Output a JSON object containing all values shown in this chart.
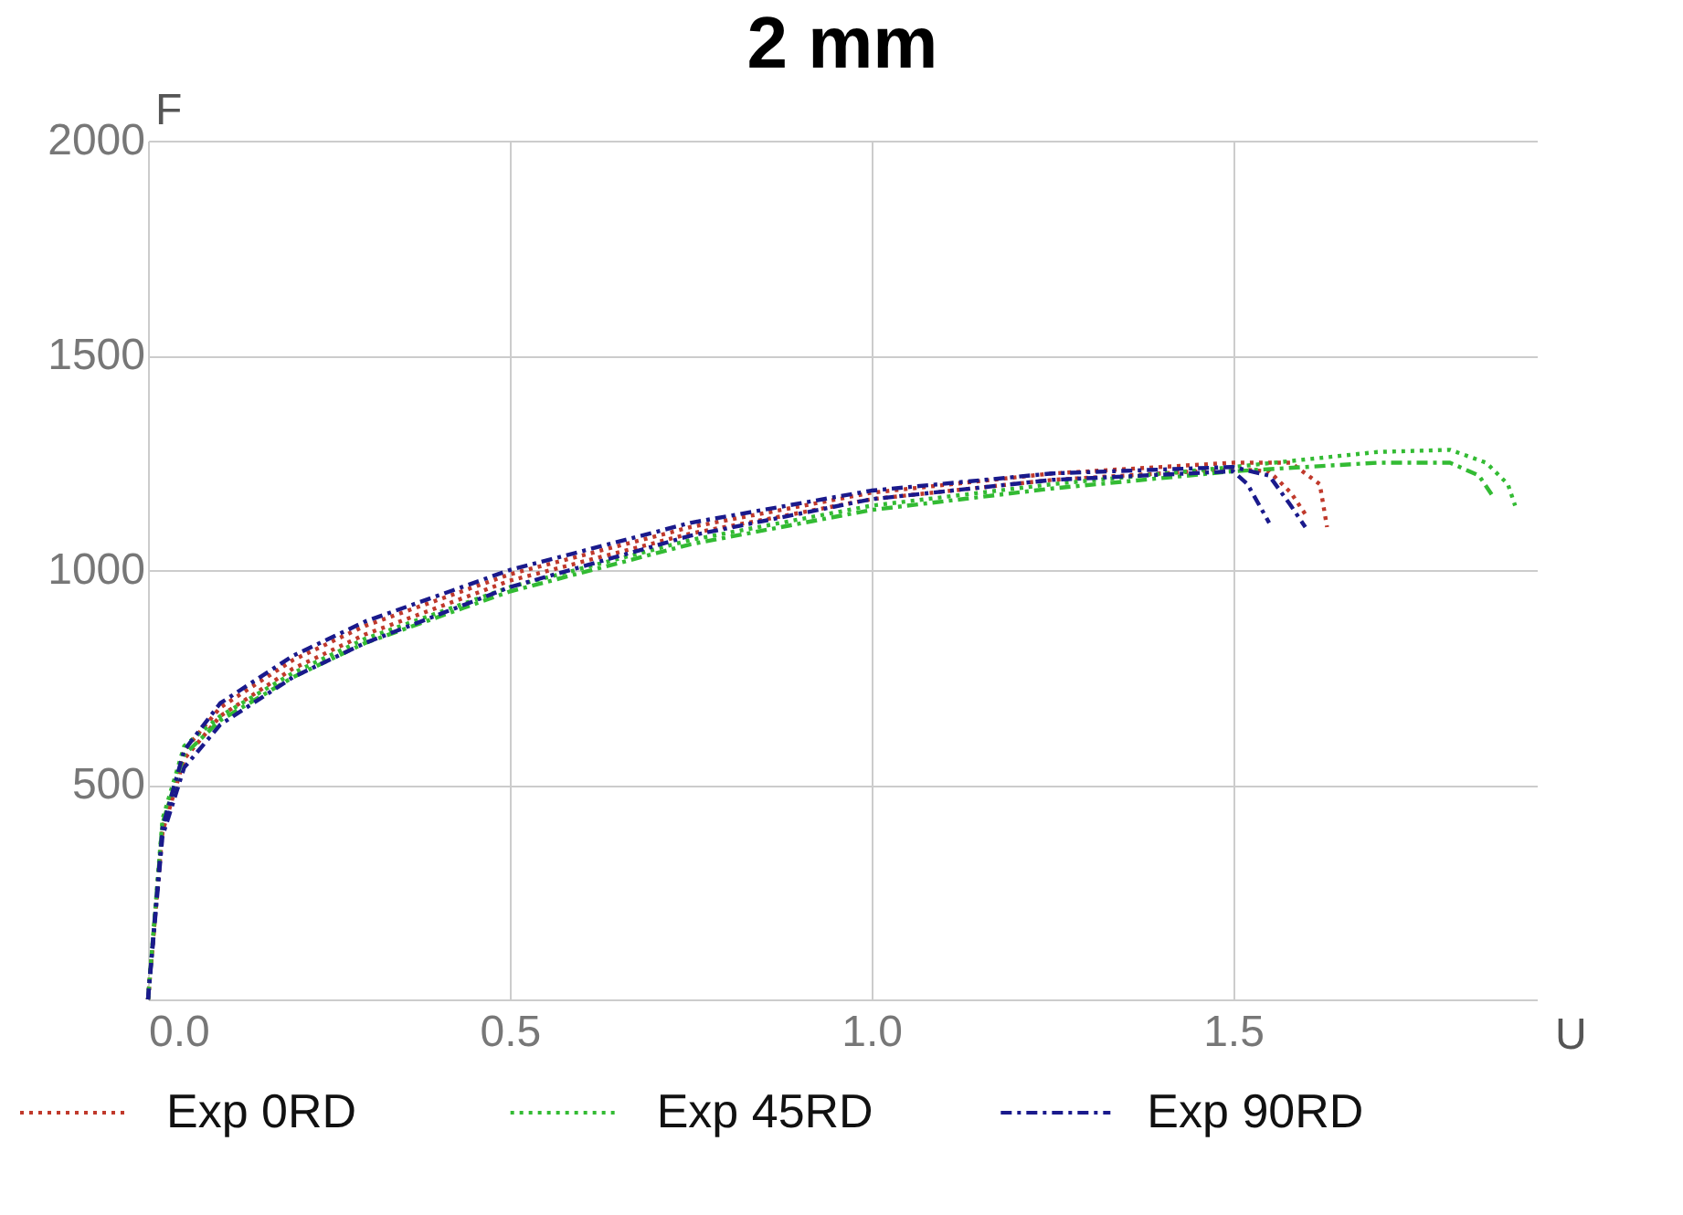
{
  "chart_data": {
    "type": "line",
    "title": "2 mm",
    "xlabel": "U",
    "ylabel": "F",
    "xlim": [
      0,
      1.92
    ],
    "ylim": [
      0,
      2000
    ],
    "xticks": [
      {
        "value": 0,
        "label": "0.0"
      },
      0.5,
      {
        "value": 1,
        "label": "1.0"
      },
      1.5
    ],
    "yticks": [
      {
        "value": 0,
        "label": null
      },
      500,
      1000,
      1500,
      2000
    ],
    "grid": true,
    "legend": "bottom",
    "marker": "none",
    "series": [
      {
        "name": "Exp 0RD",
        "color": "#c0392b",
        "line_style": "dotted",
        "x": [
          0,
          0.02,
          0.05,
          0.1,
          0.2,
          0.3,
          0.5,
          0.75,
          1.0,
          1.25,
          1.5,
          1.58,
          1.62,
          1.63
        ],
        "values": [
          0,
          400,
          580,
          680,
          790,
          870,
          990,
          1100,
          1180,
          1225,
          1250,
          1250,
          1200,
          1100
        ]
      },
      {
        "color": "#c0392b",
        "line_style": "dotted",
        "x": [
          0,
          0.02,
          0.05,
          0.1,
          0.2,
          0.3,
          0.5,
          0.75,
          1.0,
          1.25,
          1.5,
          1.55,
          1.58,
          1.6
        ],
        "values": [
          0,
          390,
          560,
          660,
          770,
          850,
          975,
          1085,
          1165,
          1210,
          1235,
          1230,
          1180,
          1130
        ]
      },
      {
        "name": "Exp 45RD",
        "color": "#33bb33",
        "line_style": "dotted",
        "x": [
          0,
          0.02,
          0.05,
          0.1,
          0.2,
          0.3,
          0.5,
          0.75,
          1.0,
          1.25,
          1.5,
          1.7,
          1.8,
          1.85,
          1.88,
          1.89
        ],
        "values": [
          0,
          420,
          590,
          660,
          760,
          840,
          960,
          1070,
          1150,
          1200,
          1240,
          1275,
          1280,
          1250,
          1200,
          1150
        ]
      },
      {
        "color": "#33bb33",
        "line_style": "dashdot",
        "x": [
          0,
          0.02,
          0.05,
          0.1,
          0.2,
          0.3,
          0.5,
          0.75,
          1.0,
          1.25,
          1.5,
          1.7,
          1.8,
          1.84,
          1.86
        ],
        "values": [
          0,
          410,
          570,
          650,
          750,
          830,
          950,
          1060,
          1140,
          1190,
          1230,
          1250,
          1250,
          1220,
          1170
        ]
      },
      {
        "name": "Exp 90RD",
        "color": "#1a1a8c",
        "line_style": "dashdot",
        "x": [
          0,
          0.02,
          0.05,
          0.1,
          0.2,
          0.3,
          0.5,
          0.75,
          1.0,
          1.25,
          1.5,
          1.52,
          1.55
        ],
        "values": [
          0,
          380,
          540,
          640,
          750,
          830,
          960,
          1080,
          1165,
          1210,
          1230,
          1200,
          1110
        ]
      },
      {
        "color": "#1a1a8c",
        "line_style": "dashdot",
        "x": [
          0,
          0.02,
          0.05,
          0.1,
          0.2,
          0.3,
          0.5,
          0.75,
          1.0,
          1.25,
          1.5,
          1.55,
          1.58,
          1.6
        ],
        "values": [
          0,
          400,
          580,
          690,
          800,
          880,
          1000,
          1110,
          1185,
          1225,
          1240,
          1220,
          1150,
          1100
        ]
      }
    ]
  }
}
